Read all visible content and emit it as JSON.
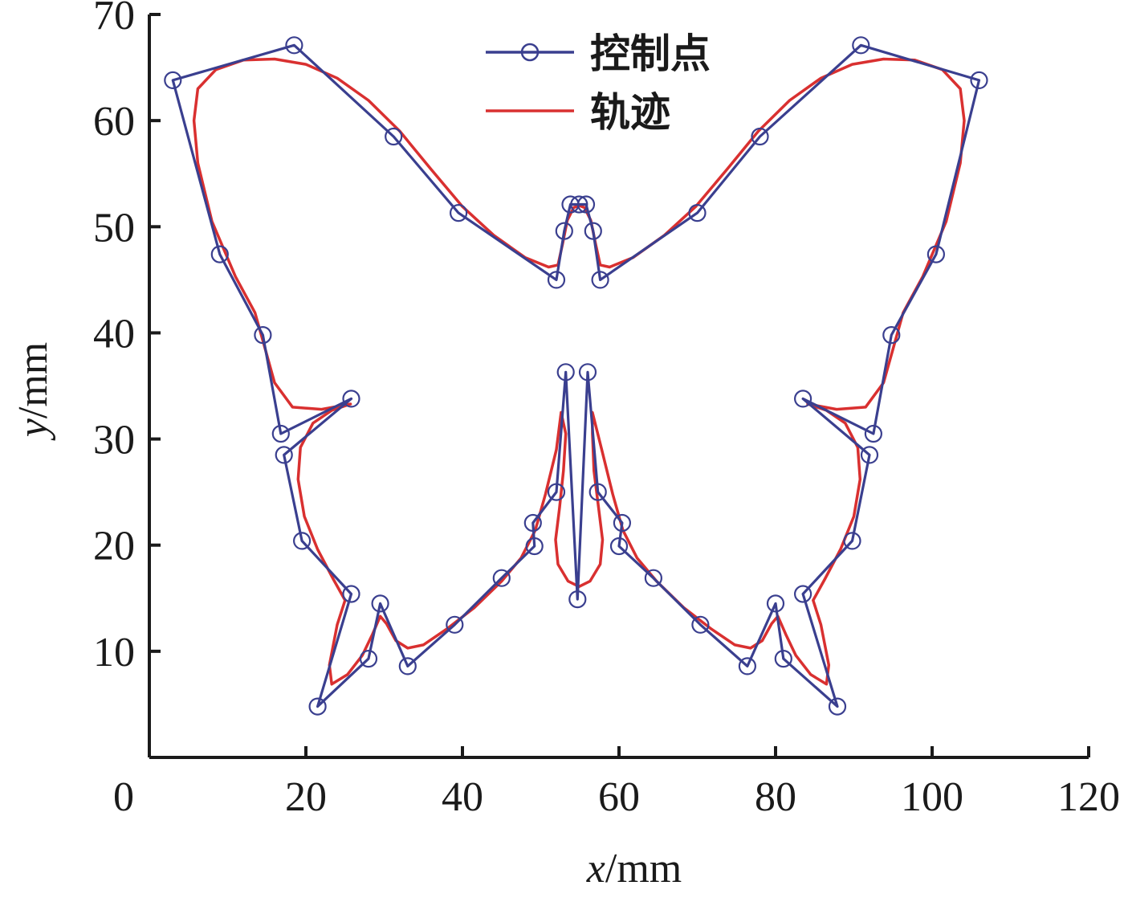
{
  "chart_data": {
    "type": "line",
    "title": "",
    "xlabel": "x",
    "xunit": "/mm",
    "ylabel": "y",
    "yunit": "/mm",
    "xlim": [
      0,
      120
    ],
    "ylim": [
      0,
      70
    ],
    "xticks": [
      "0",
      "20",
      "40",
      "60",
      "80",
      "100",
      "120"
    ],
    "yticks": [
      "10",
      "20",
      "30",
      "40",
      "50",
      "60",
      "70"
    ],
    "grid": false,
    "legend_position": "top-center",
    "colors": {
      "control": "#3a3f8f",
      "trajectory": "#d93030",
      "axis": "#1a1a1a"
    },
    "series": [
      {
        "name": "控制点",
        "style": "line-with-open-circles",
        "color": "#3a3f8f",
        "points": [
          [
            53.2,
            36.3
          ],
          [
            52.0,
            25.0
          ],
          [
            49.0,
            22.1
          ],
          [
            49.2,
            19.9
          ],
          [
            45.0,
            16.9
          ],
          [
            39.0,
            12.5
          ],
          [
            33.0,
            8.6
          ],
          [
            29.5,
            14.5
          ],
          [
            28.0,
            9.3
          ],
          [
            21.5,
            4.8
          ],
          [
            25.8,
            15.4
          ],
          [
            19.5,
            20.4
          ],
          [
            17.2,
            28.5
          ],
          [
            25.8,
            33.8
          ],
          [
            16.8,
            30.5
          ],
          [
            14.5,
            39.8
          ],
          [
            9.0,
            47.4
          ],
          [
            3.0,
            63.8
          ],
          [
            18.5,
            67.1
          ],
          [
            31.2,
            58.5
          ],
          [
            39.5,
            51.3
          ],
          [
            52.0,
            45.0
          ],
          [
            53.0,
            49.6
          ],
          [
            53.8,
            52.1
          ],
          [
            54.9,
            52.1
          ],
          [
            55.8,
            52.1
          ],
          [
            56.7,
            49.6
          ],
          [
            57.6,
            45.0
          ],
          [
            70.0,
            51.3
          ],
          [
            78.0,
            58.5
          ],
          [
            90.9,
            67.1
          ],
          [
            106.0,
            63.8
          ],
          [
            100.5,
            47.4
          ],
          [
            94.8,
            39.8
          ],
          [
            92.5,
            30.5
          ],
          [
            83.5,
            33.8
          ],
          [
            92.0,
            28.5
          ],
          [
            89.8,
            20.4
          ],
          [
            83.5,
            15.4
          ],
          [
            87.9,
            4.8
          ],
          [
            81.0,
            9.3
          ],
          [
            80.0,
            14.5
          ],
          [
            76.4,
            8.6
          ],
          [
            70.4,
            12.5
          ],
          [
            64.4,
            16.9
          ],
          [
            60.0,
            19.9
          ],
          [
            60.4,
            22.1
          ],
          [
            57.3,
            25.0
          ],
          [
            56.0,
            36.3
          ],
          [
            54.7,
            14.9
          ],
          [
            53.2,
            36.3
          ]
        ]
      },
      {
        "name": "轨迹",
        "style": "line",
        "color": "#d93030",
        "points": [
          [
            52.6,
            32.5
          ],
          [
            52.0,
            29.0
          ],
          [
            50.6,
            24.8
          ],
          [
            49.3,
            21.4
          ],
          [
            47.5,
            18.8
          ],
          [
            45.0,
            16.6
          ],
          [
            41.5,
            14.1
          ],
          [
            38.0,
            12.1
          ],
          [
            35.0,
            10.6
          ],
          [
            33.0,
            10.3
          ],
          [
            31.5,
            11.0
          ],
          [
            30.3,
            12.6
          ],
          [
            29.5,
            13.3
          ],
          [
            28.5,
            11.6
          ],
          [
            27.2,
            9.6
          ],
          [
            25.3,
            7.8
          ],
          [
            23.3,
            6.9
          ],
          [
            23.0,
            8.7
          ],
          [
            24.0,
            12.5
          ],
          [
            25.0,
            14.8
          ],
          [
            23.5,
            16.8
          ],
          [
            21.5,
            19.6
          ],
          [
            19.8,
            22.7
          ],
          [
            19.0,
            26.2
          ],
          [
            19.3,
            29.2
          ],
          [
            20.9,
            31.5
          ],
          [
            23.3,
            32.7
          ],
          [
            25.7,
            33.3
          ],
          [
            22.0,
            32.8
          ],
          [
            18.3,
            33.0
          ],
          [
            16.0,
            35.3
          ],
          [
            14.6,
            39.0
          ],
          [
            13.5,
            41.9
          ],
          [
            11.0,
            45.3
          ],
          [
            8.0,
            50.5
          ],
          [
            6.2,
            56.0
          ],
          [
            5.7,
            60.0
          ],
          [
            6.2,
            63.0
          ],
          [
            8.5,
            64.8
          ],
          [
            12.0,
            65.7
          ],
          [
            16.0,
            65.8
          ],
          [
            20.0,
            65.3
          ],
          [
            24.0,
            64.0
          ],
          [
            28.0,
            61.9
          ],
          [
            32.0,
            59.0
          ],
          [
            36.0,
            55.4
          ],
          [
            40.0,
            51.9
          ],
          [
            44.0,
            49.2
          ],
          [
            48.0,
            47.1
          ],
          [
            51.0,
            46.2
          ],
          [
            52.2,
            46.4
          ],
          [
            52.8,
            48.4
          ],
          [
            53.4,
            50.6
          ],
          [
            54.2,
            51.8
          ],
          [
            54.9,
            52.0
          ],
          [
            55.6,
            51.8
          ],
          [
            56.4,
            50.6
          ],
          [
            57.0,
            48.4
          ],
          [
            57.6,
            46.4
          ],
          [
            58.8,
            46.2
          ],
          [
            61.8,
            47.1
          ],
          [
            65.8,
            49.2
          ],
          [
            69.8,
            51.9
          ],
          [
            73.8,
            55.4
          ],
          [
            77.8,
            59.0
          ],
          [
            81.8,
            61.9
          ],
          [
            85.8,
            64.0
          ],
          [
            89.8,
            65.3
          ],
          [
            93.8,
            65.8
          ],
          [
            97.8,
            65.7
          ],
          [
            101.3,
            64.8
          ],
          [
            103.6,
            63.0
          ],
          [
            104.1,
            60.0
          ],
          [
            103.6,
            56.0
          ],
          [
            101.8,
            50.5
          ],
          [
            98.8,
            45.3
          ],
          [
            96.3,
            41.9
          ],
          [
            95.2,
            39.0
          ],
          [
            93.8,
            35.3
          ],
          [
            91.5,
            33.0
          ],
          [
            87.8,
            32.8
          ],
          [
            84.1,
            33.3
          ],
          [
            86.5,
            32.7
          ],
          [
            88.9,
            31.5
          ],
          [
            90.5,
            29.2
          ],
          [
            90.8,
            26.2
          ],
          [
            90.0,
            22.7
          ],
          [
            88.3,
            19.6
          ],
          [
            86.3,
            16.8
          ],
          [
            84.8,
            14.8
          ],
          [
            85.8,
            12.5
          ],
          [
            86.8,
            8.7
          ],
          [
            86.5,
            6.9
          ],
          [
            84.5,
            7.8
          ],
          [
            82.6,
            9.6
          ],
          [
            81.3,
            11.6
          ],
          [
            80.3,
            13.3
          ],
          [
            79.5,
            12.6
          ],
          [
            78.3,
            11.0
          ],
          [
            76.8,
            10.3
          ],
          [
            74.8,
            10.6
          ],
          [
            71.8,
            12.1
          ],
          [
            68.3,
            14.1
          ],
          [
            64.8,
            16.6
          ],
          [
            62.3,
            18.8
          ],
          [
            60.5,
            21.4
          ],
          [
            59.2,
            24.8
          ],
          [
            57.8,
            29.0
          ],
          [
            56.6,
            32.5
          ],
          [
            56.6,
            30.5
          ],
          [
            56.8,
            27.0
          ],
          [
            57.4,
            23.5
          ],
          [
            57.9,
            20.5
          ],
          [
            57.6,
            18.2
          ],
          [
            56.3,
            16.6
          ],
          [
            54.9,
            16.1
          ],
          [
            53.5,
            16.6
          ],
          [
            52.2,
            18.2
          ],
          [
            51.9,
            20.5
          ],
          [
            52.4,
            23.5
          ],
          [
            52.9,
            27.0
          ],
          [
            53.2,
            30.5
          ],
          [
            52.6,
            32.5
          ]
        ]
      }
    ]
  }
}
